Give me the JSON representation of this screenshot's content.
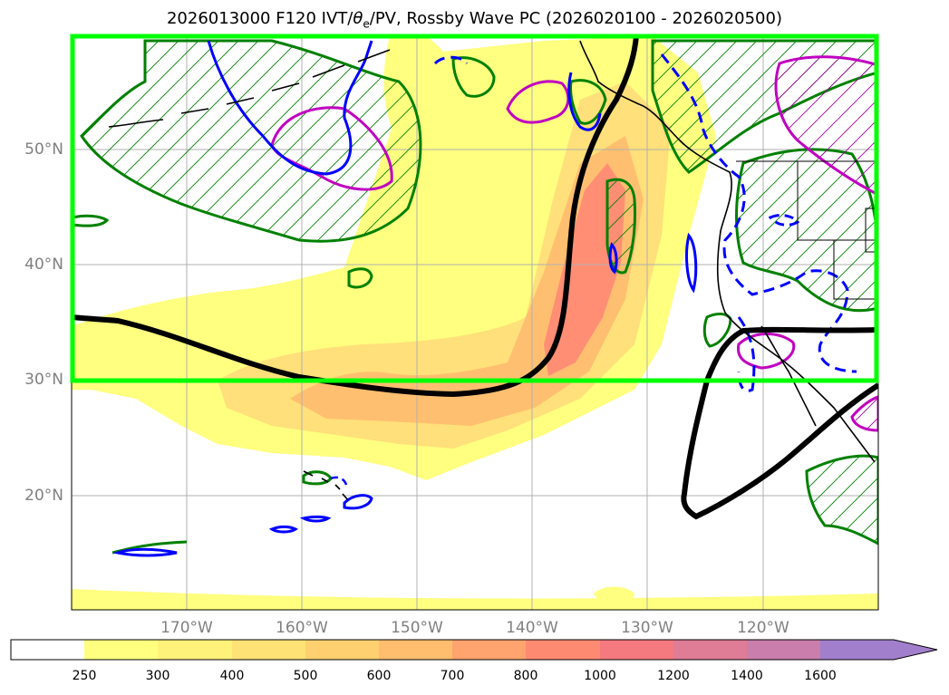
{
  "title": {
    "prefix": "2026013000 F120 IVT/",
    "theta": "θ",
    "sub": "e",
    "suffix": "/PV, Rossby Wave PC (2026020100 - 2026020500)"
  },
  "map": {
    "lat_labels": [
      "50°N",
      "40°N",
      "30°N",
      "20°N"
    ],
    "lon_labels": [
      "170°W",
      "160°W",
      "150°W",
      "140°W",
      "130°W",
      "120°W"
    ],
    "region": "North Pacific / western North America",
    "box": {
      "lat_range": [
        30,
        60
      ],
      "lon_range": [
        -180,
        -110
      ],
      "color": "#00ff00"
    }
  },
  "colorbar": {
    "levels": [
      "250",
      "300",
      "400",
      "500",
      "600",
      "700",
      "800",
      "1000",
      "1200",
      "1400",
      "1600"
    ],
    "colors": [
      "#ffff80",
      "#fff27a",
      "#ffe275",
      "#ffd070",
      "#ffbd6d",
      "#ffa46e",
      "#ff8a72",
      "#f47a80",
      "#df7c96",
      "#c97eac",
      "#b27fc0",
      "#a27fcc"
    ],
    "extend": "max"
  },
  "legend_colors": {
    "ivt_fill": "#ffff80",
    "trough_contour": "#0a0a0a",
    "green_contour": "#008000",
    "blue_contour": "#0000ff",
    "magenta_contour": "#c000c0",
    "box": "#00ff00"
  }
}
